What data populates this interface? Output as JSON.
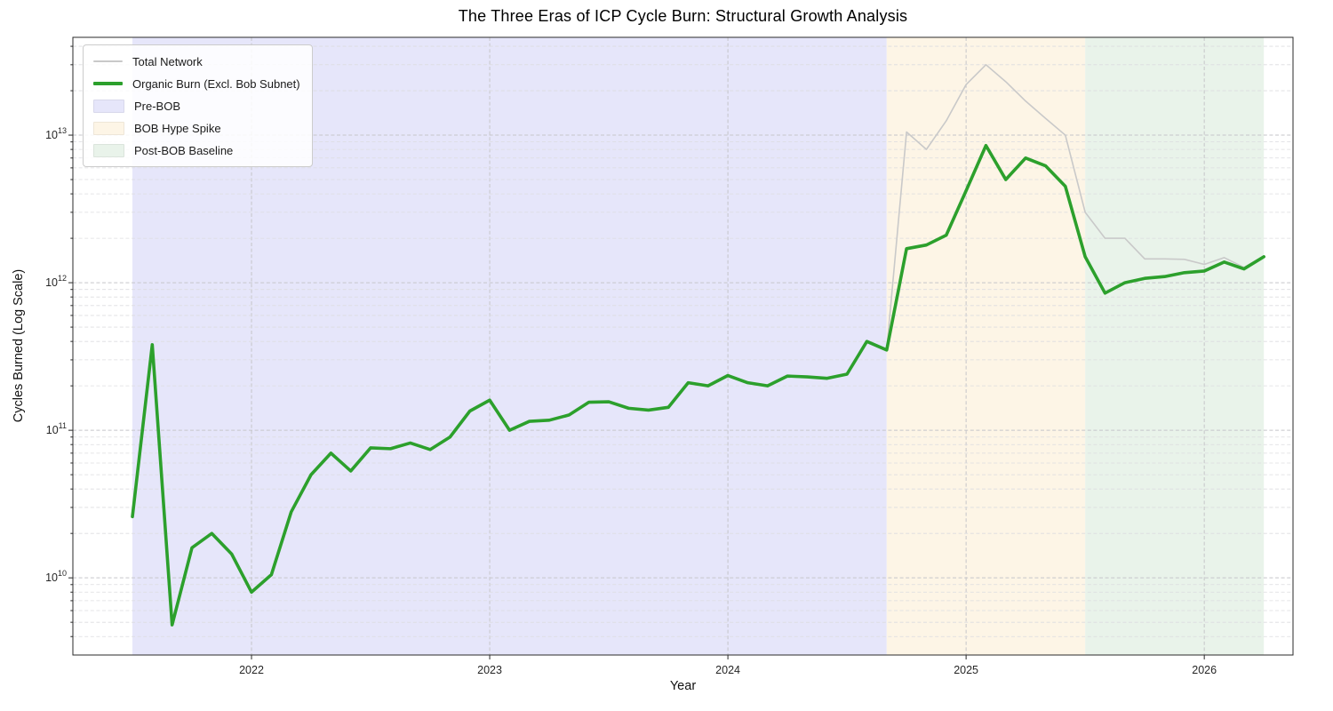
{
  "chart_data": {
    "type": "line",
    "title": "The Three Eras of ICP Cycle Burn: Structural Growth Analysis",
    "xlabel": "Year",
    "ylabel": "Cycles Burned (Log Scale)",
    "yscale": "log",
    "grid": true,
    "legend_position": "upper left",
    "ylim": [
      3000000000.0,
      46000000000000.0
    ],
    "xlim_months_since_2021_01": [
      3.0,
      64.47
    ],
    "x_ticks": [
      {
        "label": "2022",
        "month": "2022-01"
      },
      {
        "label": "2023",
        "month": "2023-01"
      },
      {
        "label": "2024",
        "month": "2024-01"
      },
      {
        "label": "2025",
        "month": "2025-01"
      },
      {
        "label": "2026",
        "month": "2026-01"
      }
    ],
    "y_ticks": [
      {
        "base": "10",
        "exponent": 10
      },
      {
        "base": "10",
        "exponent": 11
      },
      {
        "base": "10",
        "exponent": 12
      },
      {
        "base": "10",
        "exponent": 13
      }
    ],
    "x": [
      "2021-07",
      "2021-08",
      "2021-09",
      "2021-10",
      "2021-11",
      "2021-12",
      "2022-01",
      "2022-02",
      "2022-03",
      "2022-04",
      "2022-05",
      "2022-06",
      "2022-07",
      "2022-08",
      "2022-09",
      "2022-10",
      "2022-11",
      "2022-12",
      "2023-01",
      "2023-02",
      "2023-03",
      "2023-04",
      "2023-05",
      "2023-06",
      "2023-07",
      "2023-08",
      "2023-09",
      "2023-10",
      "2023-11",
      "2023-12",
      "2024-01",
      "2024-02",
      "2024-03",
      "2024-04",
      "2024-05",
      "2024-06",
      "2024-07",
      "2024-08",
      "2024-09",
      "2024-10",
      "2024-11",
      "2024-12",
      "2025-01",
      "2025-02",
      "2025-03",
      "2025-04",
      "2025-05",
      "2025-06",
      "2025-07",
      "2025-08",
      "2025-09",
      "2025-10",
      "2025-11",
      "2025-12",
      "2026-01",
      "2026-02",
      "2026-03",
      "2026-04"
    ],
    "series": [
      {
        "name": "Total Network",
        "color": "#c9c9c9",
        "line_width": 1.6,
        "values": [
          26000000000.0,
          380000000000.0,
          4800000000.0,
          16000000000.0,
          20000000000.0,
          14500000000.0,
          8000000000.0,
          10500000000.0,
          28000000000.0,
          50000000000.0,
          70000000000.0,
          53000000000.0,
          76000000000.0,
          75000000000.0,
          82000000000.0,
          74000000000.0,
          90000000000.0,
          135000000000.0,
          160000000000.0,
          100000000000.0,
          115000000000.0,
          117000000000.0,
          127000000000.0,
          155000000000.0,
          156000000000.0,
          141000000000.0,
          137000000000.0,
          143000000000.0,
          210000000000.0,
          200000000000.0,
          235000000000.0,
          210000000000.0,
          200000000000.0,
          233000000000.0,
          230000000000.0,
          225000000000.0,
          240000000000.0,
          400000000000.0,
          350000000000.0,
          10500000000000.0,
          8000000000000.0,
          12500000000000.0,
          22000000000000.0,
          30000000000000.0,
          23000000000000.0,
          17000000000000.0,
          13000000000000.0,
          10000000000000.0,
          3000000000000.0,
          2000000000000.0,
          2000000000000.0,
          1450000000000.0,
          1450000000000.0,
          1440000000000.0,
          1330000000000.0,
          1480000000000.0,
          1270000000000.0,
          1520000000000.0
        ]
      },
      {
        "name": "Organic Burn (Excl. Bob Subnet)",
        "color": "#2ca02c",
        "line_width": 3.6,
        "values": [
          26000000000.0,
          380000000000.0,
          4800000000.0,
          16000000000.0,
          20000000000.0,
          14500000000.0,
          8000000000.0,
          10500000000.0,
          28000000000.0,
          50000000000.0,
          70000000000.0,
          53000000000.0,
          76000000000.0,
          75000000000.0,
          82000000000.0,
          74000000000.0,
          90000000000.0,
          135000000000.0,
          160000000000.0,
          100000000000.0,
          115000000000.0,
          117000000000.0,
          127000000000.0,
          155000000000.0,
          156000000000.0,
          141000000000.0,
          137000000000.0,
          143000000000.0,
          210000000000.0,
          200000000000.0,
          235000000000.0,
          210000000000.0,
          200000000000.0,
          233000000000.0,
          230000000000.0,
          225000000000.0,
          240000000000.0,
          400000000000.0,
          350000000000.0,
          1700000000000.0,
          1800000000000.0,
          2100000000000.0,
          4200000000000.0,
          8500000000000.0,
          5000000000000.0,
          7000000000000.0,
          6200000000000.0,
          4500000000000.0,
          1500000000000.0,
          850000000000.0,
          1000000000000.0,
          1070000000000.0,
          1100000000000.0,
          1170000000000.0,
          1200000000000.0,
          1380000000000.0,
          1240000000000.0,
          1500000000000.0
        ]
      }
    ],
    "regions": [
      {
        "label": "Pre-BOB",
        "color": "#e6e6fa",
        "start": "2021-07",
        "end": "2024-09"
      },
      {
        "label": "BOB Hype Spike",
        "color": "#fdf5e6",
        "start": "2024-09",
        "end": "2025-07"
      },
      {
        "label": "Post-BOB Baseline",
        "color": "#e9f3ea",
        "start": "2025-07",
        "end": "2026-04"
      }
    ],
    "legend": [
      {
        "label": "Total Network",
        "swatch": "line",
        "color": "#c9c9c9",
        "thickness": 2
      },
      {
        "label": "Organic Burn (Excl. Bob Subnet)",
        "swatch": "line",
        "color": "#2ca02c",
        "thickness": 4
      },
      {
        "label": "Pre-BOB",
        "swatch": "patch",
        "color": "#e6e6fa"
      },
      {
        "label": "BOB Hype Spike",
        "swatch": "patch",
        "color": "#fdf5e6"
      },
      {
        "label": "Post-BOB Baseline",
        "swatch": "patch",
        "color": "#e9f3ea"
      }
    ]
  }
}
